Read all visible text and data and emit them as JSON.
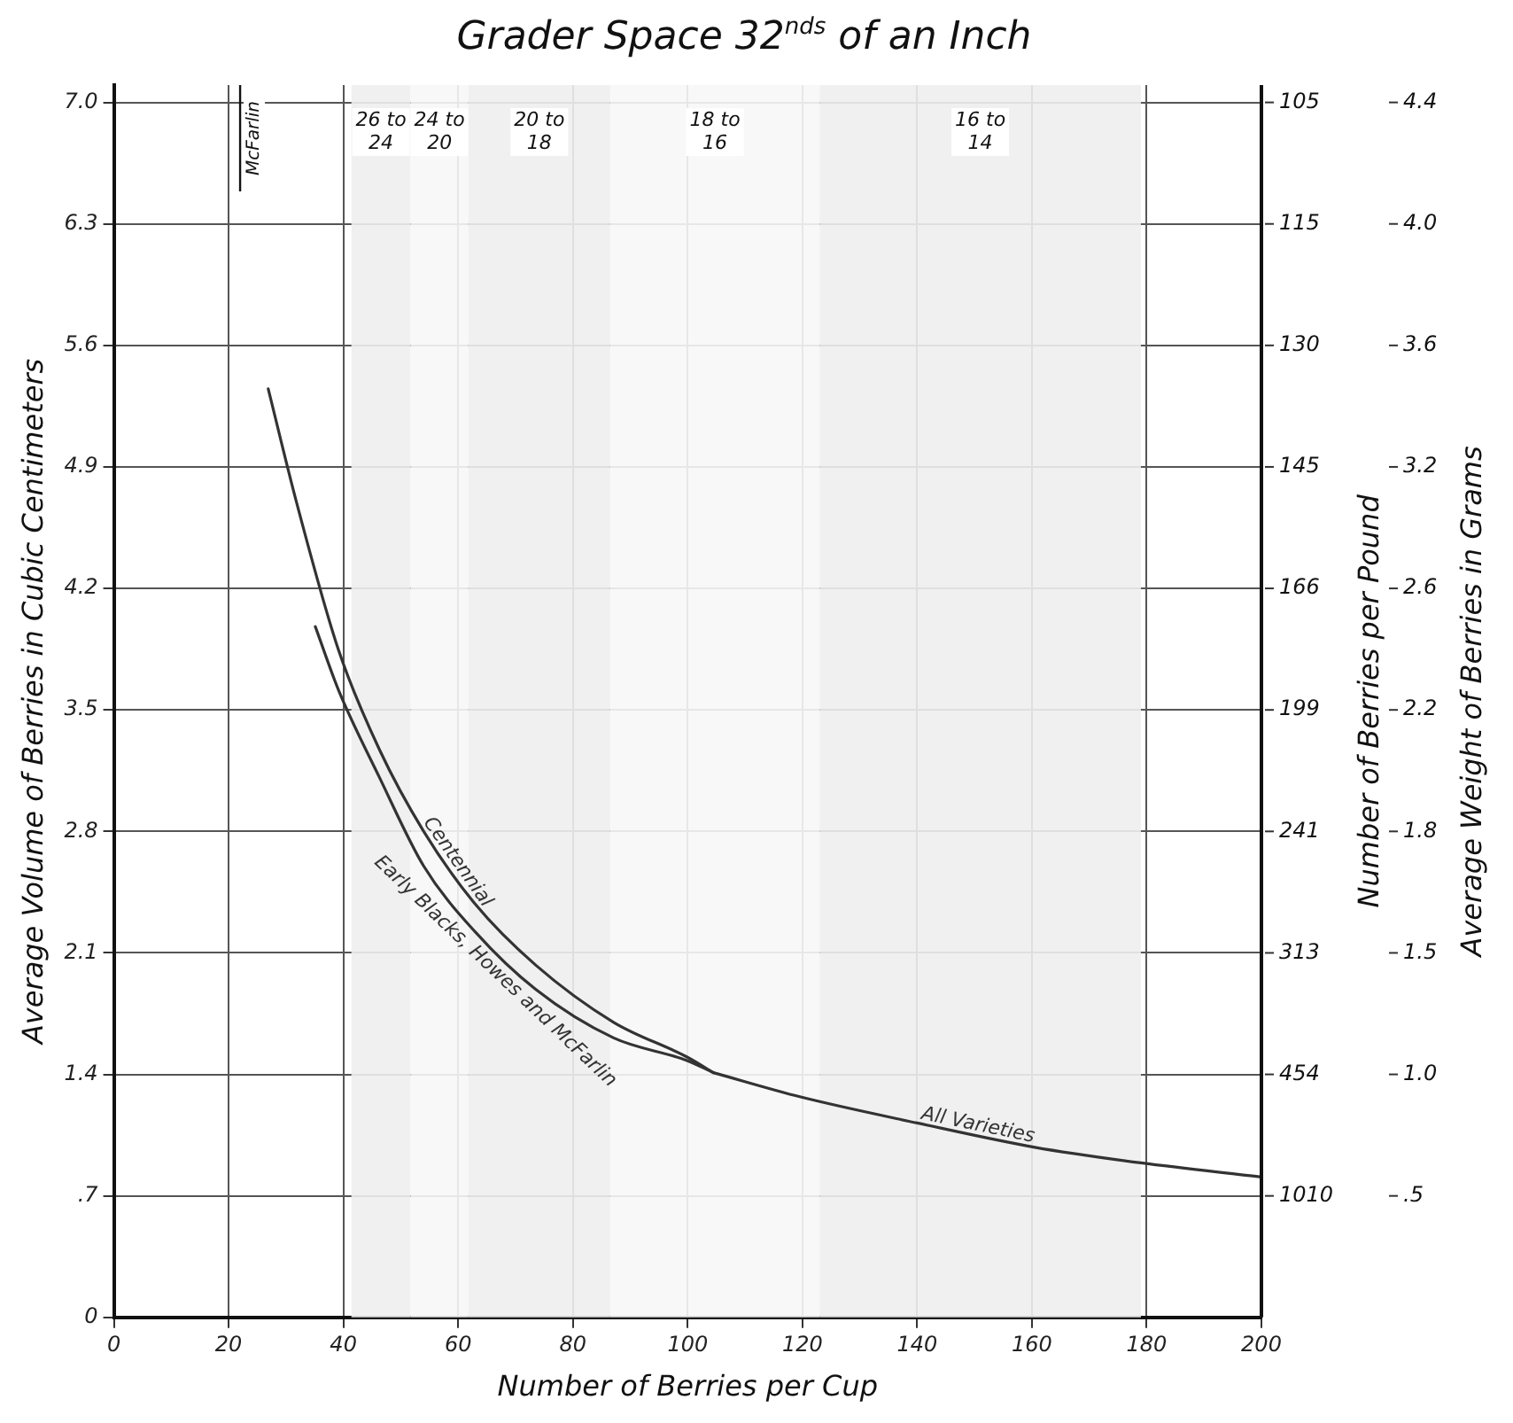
{
  "chart_data": {
    "type": "line",
    "title": "Grader Space 32$^{nds}$ of an Inch",
    "xlabel": "Number of Berries per Cup",
    "ylabel": "Average Volume of Berries in Cubic Centimeters",
    "y2label": "Number of Berries per Pound",
    "y3label": "Average Weight of Berries in Grams",
    "xlim": [
      0,
      200
    ],
    "xticks": [
      0,
      20,
      40,
      60,
      80,
      100,
      120,
      140,
      160,
      180,
      200
    ],
    "ylim": [
      0,
      7.1
    ],
    "yticks": [
      0,
      {
        "value": 0.7,
        "label": ".7"
      },
      1.4,
      2.1,
      2.8,
      3.5,
      4.2,
      4.9,
      5.6,
      6.3,
      {
        "value": 7,
        "label": "7.0"
      }
    ],
    "y2_categories": [
      "105",
      "115",
      "130",
      "145",
      "166",
      "199",
      "241",
      "313",
      "454",
      "1010",
      null
    ],
    "bands": [
      {
        "axis": "x",
        "from": 41.4,
        "to": 51.7,
        "label": "26 to 24",
        "color": "#eeeeee"
      },
      {
        "axis": "x",
        "from": 51.7,
        "to": 61.8,
        "label": "24 to 20",
        "color": "#f7f7f7"
      },
      {
        "axis": "x",
        "from": 61.8,
        "to": 86.5,
        "label": "20 to 18",
        "color": "#eeeeee"
      },
      {
        "axis": "x",
        "from": 86.5,
        "to": 123,
        "label": "18 to 16",
        "color": "#f7f7f7"
      },
      {
        "axis": "x",
        "from": 123,
        "to": 179,
        "label": "16 to 14",
        "color": "#eeeeee"
      }
    ],
    "ref_lines": [
      {
        "axis": "x",
        "value": 22,
        "label": "McFarlin"
      }
    ],
    "grid": true,
    "legend": false,
    "marker": "none",
    "line_style": "solid",
    "annotations": [
      "4.4",
      "4.0",
      "3.6",
      "3.2",
      "2.6",
      "2.2",
      "1.8",
      "1.5",
      "1.0",
      ".5"
    ],
    "series": [
      {
        "name": "Centennial",
        "color": "#333333",
        "x": [
          26.9,
          31.8,
          39.2,
          46.3,
          54,
          63,
          73.5,
          87.1,
          99.9,
          104.5
        ],
        "values": [
          5.35,
          4.7,
          3.84,
          3.27,
          2.8,
          2.38,
          2.03,
          1.7,
          1.5,
          1.41
        ]
      },
      {
        "name": "Early Blacks, Howes and McFarlin",
        "color": "#333333",
        "x": [
          35.1,
          39.2,
          46.3,
          54,
          63,
          73.5,
          87.1,
          99.9,
          104.5
        ],
        "values": [
          3.98,
          3.61,
          3.11,
          2.6,
          2.22,
          1.89,
          1.61,
          1.48,
          1.41
        ]
      },
      {
        "name": "All Varieties",
        "color": "#333333",
        "x": [
          104.5,
          119.7,
          140,
          160.5,
          179,
          199.7
        ],
        "values": [
          1.41,
          1.27,
          1.12,
          0.98,
          0.89,
          0.81
        ]
      }
    ]
  }
}
